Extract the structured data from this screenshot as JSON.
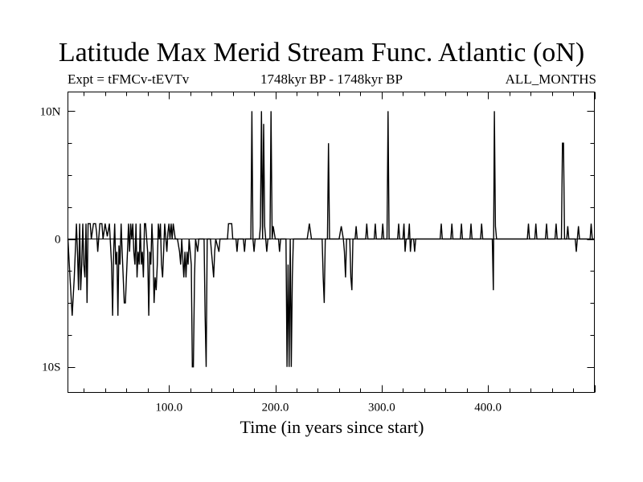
{
  "chart_data": {
    "type": "line",
    "title": "Latitude Max Merid Stream Func. Atlantic (oN)",
    "subtitle_left": "Expt = tFMCv-tEVTv",
    "subtitle_center": "1748kyr BP - 1748kyr BP",
    "subtitle_right": "ALL_MONTHS",
    "xlabel": "Time (in years since start)",
    "ylabel": "",
    "xlim": [
      5,
      500
    ],
    "ylim": [
      -12,
      11.5
    ],
    "x_ticks": [
      100,
      200,
      300,
      400
    ],
    "x_tick_labels": [
      "100.0",
      "200.0",
      "300.0",
      "400.0"
    ],
    "y_ticks": [
      10,
      0,
      -10
    ],
    "y_tick_labels": [
      "10N",
      "0",
      "10S"
    ],
    "series": [
      {
        "name": "tFMCv-tEVTv",
        "color": "#000000",
        "points": [
          [
            5,
            0
          ],
          [
            7,
            -3
          ],
          [
            9,
            -6
          ],
          [
            11,
            -3
          ],
          [
            13,
            1.2
          ],
          [
            14,
            -1
          ],
          [
            15,
            -4
          ],
          [
            16,
            1.2
          ],
          [
            17,
            -4
          ],
          [
            18,
            -2
          ],
          [
            19,
            1.2
          ],
          [
            20,
            -2
          ],
          [
            21,
            -3
          ],
          [
            22,
            1.2
          ],
          [
            23,
            -5
          ],
          [
            24,
            1.2
          ],
          [
            26,
            1.2
          ],
          [
            27,
            0
          ],
          [
            29,
            1.2
          ],
          [
            31,
            1.2
          ],
          [
            32,
            0.5
          ],
          [
            33,
            -1
          ],
          [
            35,
            1.2
          ],
          [
            37,
            1.2
          ],
          [
            38,
            0
          ],
          [
            40,
            1.2
          ],
          [
            42,
            0.2
          ],
          [
            44,
            1.2
          ],
          [
            46,
            -2
          ],
          [
            47,
            -6
          ],
          [
            48,
            -1
          ],
          [
            49,
            1.2
          ],
          [
            50,
            -2
          ],
          [
            51,
            -1
          ],
          [
            52,
            -6
          ],
          [
            53,
            -0.5
          ],
          [
            54,
            -2
          ],
          [
            55,
            1.2
          ],
          [
            56,
            -1
          ],
          [
            57,
            -3
          ],
          [
            58,
            -5
          ],
          [
            59,
            -5
          ],
          [
            60,
            -3
          ],
          [
            61,
            -1
          ],
          [
            62,
            1.2
          ],
          [
            63,
            -1
          ],
          [
            64,
            1.2
          ],
          [
            65,
            0
          ],
          [
            66,
            1.2
          ],
          [
            67,
            -1
          ],
          [
            68,
            -2
          ],
          [
            69,
            1.2
          ],
          [
            70,
            -3
          ],
          [
            71,
            -1
          ],
          [
            72,
            -2
          ],
          [
            73,
            1.2
          ],
          [
            74,
            -2
          ],
          [
            75,
            -1
          ],
          [
            76,
            -3
          ],
          [
            77,
            1.2
          ],
          [
            78,
            1.2
          ],
          [
            80,
            -1
          ],
          [
            81,
            -6
          ],
          [
            82,
            -1
          ],
          [
            83,
            -2
          ],
          [
            84,
            1.2
          ],
          [
            85,
            -1
          ],
          [
            86,
            -5
          ],
          [
            87,
            -3
          ],
          [
            88,
            -4
          ],
          [
            89,
            -2
          ],
          [
            90,
            1.2
          ],
          [
            91,
            0
          ],
          [
            92,
            1.2
          ],
          [
            93,
            -2
          ],
          [
            94,
            -3
          ],
          [
            95,
            -1
          ],
          [
            96,
            1.2
          ],
          [
            98,
            -1
          ],
          [
            99,
            0.5
          ],
          [
            100,
            1.2
          ],
          [
            101,
            0
          ],
          [
            102,
            1.2
          ],
          [
            103,
            0
          ],
          [
            104,
            1.2
          ],
          [
            106,
            0
          ],
          [
            108,
            0
          ],
          [
            110,
            -1
          ],
          [
            111,
            -2
          ],
          [
            112,
            0
          ],
          [
            114,
            -3
          ],
          [
            115,
            -1
          ],
          [
            116,
            -3
          ],
          [
            117,
            -1
          ],
          [
            118,
            -2
          ],
          [
            119,
            0
          ],
          [
            121,
            -2
          ],
          [
            122,
            -10
          ],
          [
            123,
            -10
          ],
          [
            124,
            -3
          ],
          [
            125,
            0
          ],
          [
            127,
            -1
          ],
          [
            128,
            0
          ],
          [
            133,
            0
          ],
          [
            134,
            -6
          ],
          [
            135,
            -10
          ],
          [
            136,
            0
          ],
          [
            139,
            0
          ],
          [
            140,
            -1
          ],
          [
            141,
            -2
          ],
          [
            142,
            -3
          ],
          [
            143,
            -1
          ],
          [
            144,
            0
          ],
          [
            147,
            -1
          ],
          [
            148,
            0
          ],
          [
            155,
            0
          ],
          [
            156,
            1.2
          ],
          [
            159,
            1.2
          ],
          [
            160,
            0
          ],
          [
            163,
            0
          ],
          [
            164,
            -1
          ],
          [
            165,
            0
          ],
          [
            170,
            0
          ],
          [
            171,
            -1
          ],
          [
            172,
            0
          ],
          [
            177,
            0
          ],
          [
            178,
            10
          ],
          [
            179,
            0
          ],
          [
            180,
            -1
          ],
          [
            181,
            0
          ],
          [
            185,
            0
          ],
          [
            186,
            1
          ],
          [
            187,
            10
          ],
          [
            188,
            0
          ],
          [
            189,
            9
          ],
          [
            190,
            1
          ],
          [
            191,
            0
          ],
          [
            192,
            -1
          ],
          [
            193,
            0
          ],
          [
            195,
            0
          ],
          [
            196,
            10
          ],
          [
            197,
            0
          ],
          [
            198,
            1
          ],
          [
            200,
            0
          ],
          [
            203,
            0
          ],
          [
            204,
            -1
          ],
          [
            205,
            0
          ],
          [
            210,
            0
          ],
          [
            211,
            -10
          ],
          [
            212,
            -2
          ],
          [
            213,
            -10
          ],
          [
            214,
            0
          ],
          [
            215,
            -10
          ],
          [
            216,
            -3
          ],
          [
            217,
            0
          ],
          [
            220,
            0
          ],
          [
            230,
            0
          ],
          [
            232,
            1.2
          ],
          [
            234,
            0
          ],
          [
            244,
            0
          ],
          [
            245,
            -3
          ],
          [
            246,
            -5
          ],
          [
            247,
            0
          ],
          [
            249,
            0
          ],
          [
            250,
            7.5
          ],
          [
            251,
            0
          ],
          [
            260,
            0
          ],
          [
            262,
            1
          ],
          [
            264,
            0
          ],
          [
            265,
            -1
          ],
          [
            266,
            -3
          ],
          [
            267,
            0
          ],
          [
            270,
            0
          ],
          [
            271,
            -3
          ],
          [
            272,
            -4
          ],
          [
            273,
            0
          ],
          [
            275,
            0
          ],
          [
            276,
            1
          ],
          [
            277,
            0
          ],
          [
            285,
            0
          ],
          [
            286,
            1.2
          ],
          [
            287,
            0
          ],
          [
            293,
            0
          ],
          [
            294,
            1.2
          ],
          [
            295,
            0
          ],
          [
            300,
            0
          ],
          [
            301,
            1.2
          ],
          [
            302,
            0
          ],
          [
            305,
            0
          ],
          [
            306,
            10
          ],
          [
            307,
            0
          ],
          [
            315,
            0
          ],
          [
            316,
            1.2
          ],
          [
            317,
            0
          ],
          [
            320,
            0
          ],
          [
            321,
            1.2
          ],
          [
            322,
            -1
          ],
          [
            323,
            0
          ],
          [
            325,
            0
          ],
          [
            326,
            1.2
          ],
          [
            327,
            -1
          ],
          [
            328,
            0
          ],
          [
            330,
            0
          ],
          [
            331,
            -1
          ],
          [
            332,
            0
          ],
          [
            355,
            0
          ],
          [
            356,
            1.2
          ],
          [
            357,
            0
          ],
          [
            365,
            0
          ],
          [
            366,
            1.2
          ],
          [
            367,
            0
          ],
          [
            374,
            0
          ],
          [
            375,
            1.2
          ],
          [
            376,
            0
          ],
          [
            383,
            0
          ],
          [
            384,
            1.2
          ],
          [
            385,
            0
          ],
          [
            393,
            0
          ],
          [
            394,
            1.2
          ],
          [
            395,
            0
          ],
          [
            404,
            0
          ],
          [
            405,
            -4
          ],
          [
            406,
            10
          ],
          [
            407,
            1
          ],
          [
            408,
            0
          ],
          [
            437,
            0
          ],
          [
            438,
            1.2
          ],
          [
            439,
            0
          ],
          [
            444,
            0
          ],
          [
            445,
            1.2
          ],
          [
            446,
            0
          ],
          [
            454,
            0
          ],
          [
            455,
            1.2
          ],
          [
            456,
            0
          ],
          [
            463,
            0
          ],
          [
            464,
            1.2
          ],
          [
            465,
            0
          ],
          [
            469,
            0
          ],
          [
            470,
            7.5
          ],
          [
            471,
            7.5
          ],
          [
            472,
            0
          ],
          [
            474,
            0
          ],
          [
            475,
            1
          ],
          [
            476,
            0
          ],
          [
            482,
            0
          ],
          [
            483,
            -1
          ],
          [
            484,
            0
          ],
          [
            485,
            1
          ],
          [
            486,
            0
          ],
          [
            496,
            0
          ],
          [
            497,
            1.2
          ],
          [
            498,
            0
          ],
          [
            500,
            0
          ]
        ]
      }
    ]
  }
}
